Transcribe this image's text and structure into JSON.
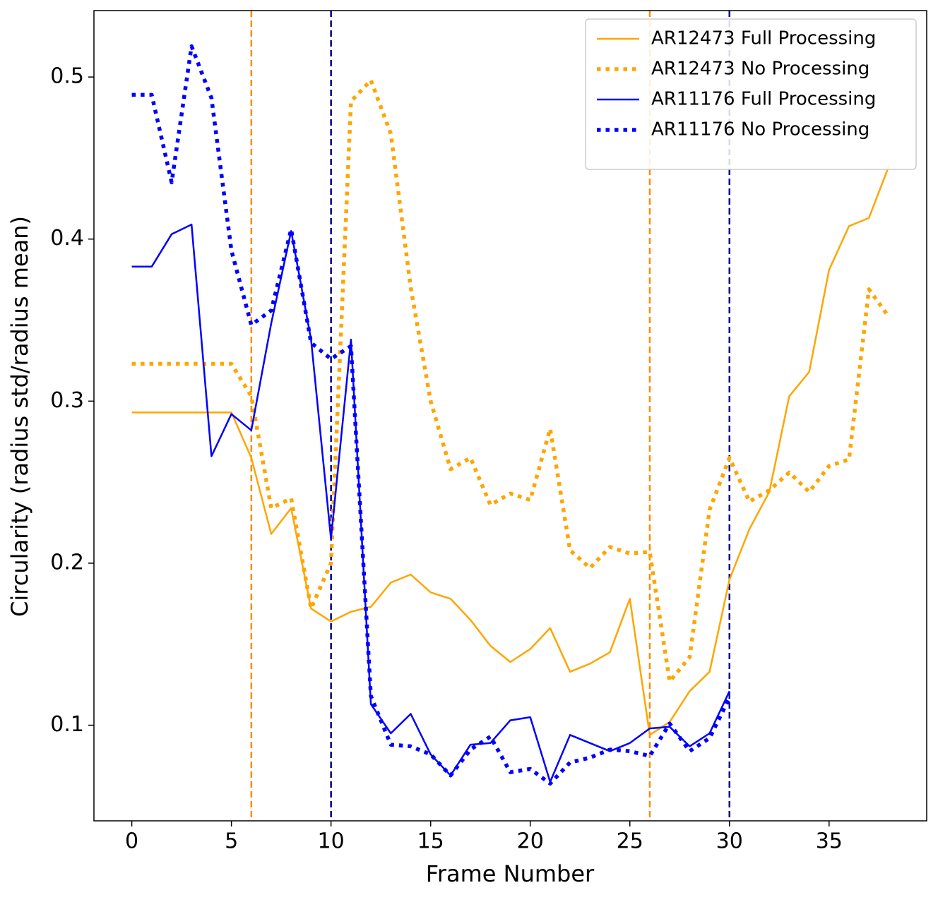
{
  "chart_data": {
    "type": "line",
    "xlabel": "Frame Number",
    "ylabel": "Circularity (radius std/radius mean)",
    "x": [
      0,
      1,
      2,
      3,
      4,
      5,
      6,
      7,
      8,
      9,
      10,
      11,
      12,
      13,
      14,
      15,
      16,
      17,
      18,
      19,
      20,
      21,
      22,
      23,
      24,
      25,
      26,
      27,
      28,
      29,
      30,
      31,
      32,
      33,
      34,
      35,
      36,
      37,
      38
    ],
    "series": [
      {
        "name": "AR12473 Full Processing",
        "color": "#ffa500",
        "style": "solid",
        "values": [
          0.293,
          0.293,
          0.293,
          0.293,
          0.293,
          0.293,
          0.265,
          0.218,
          0.234,
          0.172,
          0.164,
          0.17,
          0.173,
          0.188,
          0.193,
          0.182,
          0.178,
          0.165,
          0.149,
          0.139,
          0.147,
          0.16,
          0.133,
          0.138,
          0.145,
          0.178,
          0.094,
          0.102,
          0.121,
          0.133,
          0.19,
          0.221,
          0.244,
          0.303,
          0.318,
          0.381,
          0.408,
          0.413,
          0.445
        ]
      },
      {
        "name": "AR12473 No Processing",
        "color": "#ffa500",
        "style": "dotted",
        "values": [
          0.323,
          0.323,
          0.323,
          0.323,
          0.323,
          0.323,
          0.303,
          0.234,
          0.24,
          0.172,
          0.2,
          0.485,
          0.498,
          0.465,
          0.37,
          0.3,
          0.258,
          0.265,
          0.236,
          0.243,
          0.239,
          0.283,
          0.208,
          0.197,
          0.21,
          0.206,
          0.207,
          0.127,
          0.142,
          0.233,
          0.265,
          0.238,
          0.245,
          0.256,
          0.244,
          0.26,
          0.264,
          0.369,
          0.352
        ]
      },
      {
        "name": "AR11176 Full Processing",
        "color": "#0000ff",
        "style": "solid",
        "values": [
          0.383,
          0.383,
          0.403,
          0.409,
          0.266,
          0.292,
          0.282,
          0.348,
          0.405,
          0.338,
          0.215,
          0.338,
          0.113,
          0.095,
          0.107,
          0.082,
          0.069,
          0.088,
          0.089,
          0.103,
          0.105,
          0.065,
          0.094,
          0.089,
          0.084,
          0.089,
          0.098,
          0.099,
          0.087,
          0.095,
          0.121,
          null,
          null,
          null,
          null,
          null,
          null,
          null,
          null
        ]
      },
      {
        "name": "AR11176 No Processing",
        "color": "#0000ff",
        "style": "dotted",
        "values": [
          0.489,
          0.489,
          0.435,
          0.519,
          0.487,
          0.393,
          0.347,
          0.356,
          0.406,
          0.336,
          0.326,
          0.334,
          0.118,
          0.088,
          0.087,
          0.082,
          0.069,
          0.085,
          0.093,
          0.071,
          0.073,
          0.064,
          0.077,
          0.08,
          0.085,
          0.084,
          0.081,
          0.101,
          0.084,
          0.092,
          0.117,
          null,
          null,
          null,
          null,
          null,
          null,
          null,
          null
        ]
      }
    ],
    "vlines": [
      {
        "x": 6,
        "color": "#ff8c00"
      },
      {
        "x": 10,
        "color": "#00008b"
      },
      {
        "x": 26,
        "color": "#ff8c00"
      },
      {
        "x": 30,
        "color": "#00008b"
      }
    ],
    "xlim": [
      -1.9,
      39.9
    ],
    "ylim": [
      0.041,
      0.541
    ],
    "xticks": [
      0,
      5,
      10,
      15,
      20,
      25,
      30,
      35
    ],
    "yticks": [
      0.1,
      0.2,
      0.3,
      0.4,
      0.5
    ],
    "legend": "upper right"
  }
}
